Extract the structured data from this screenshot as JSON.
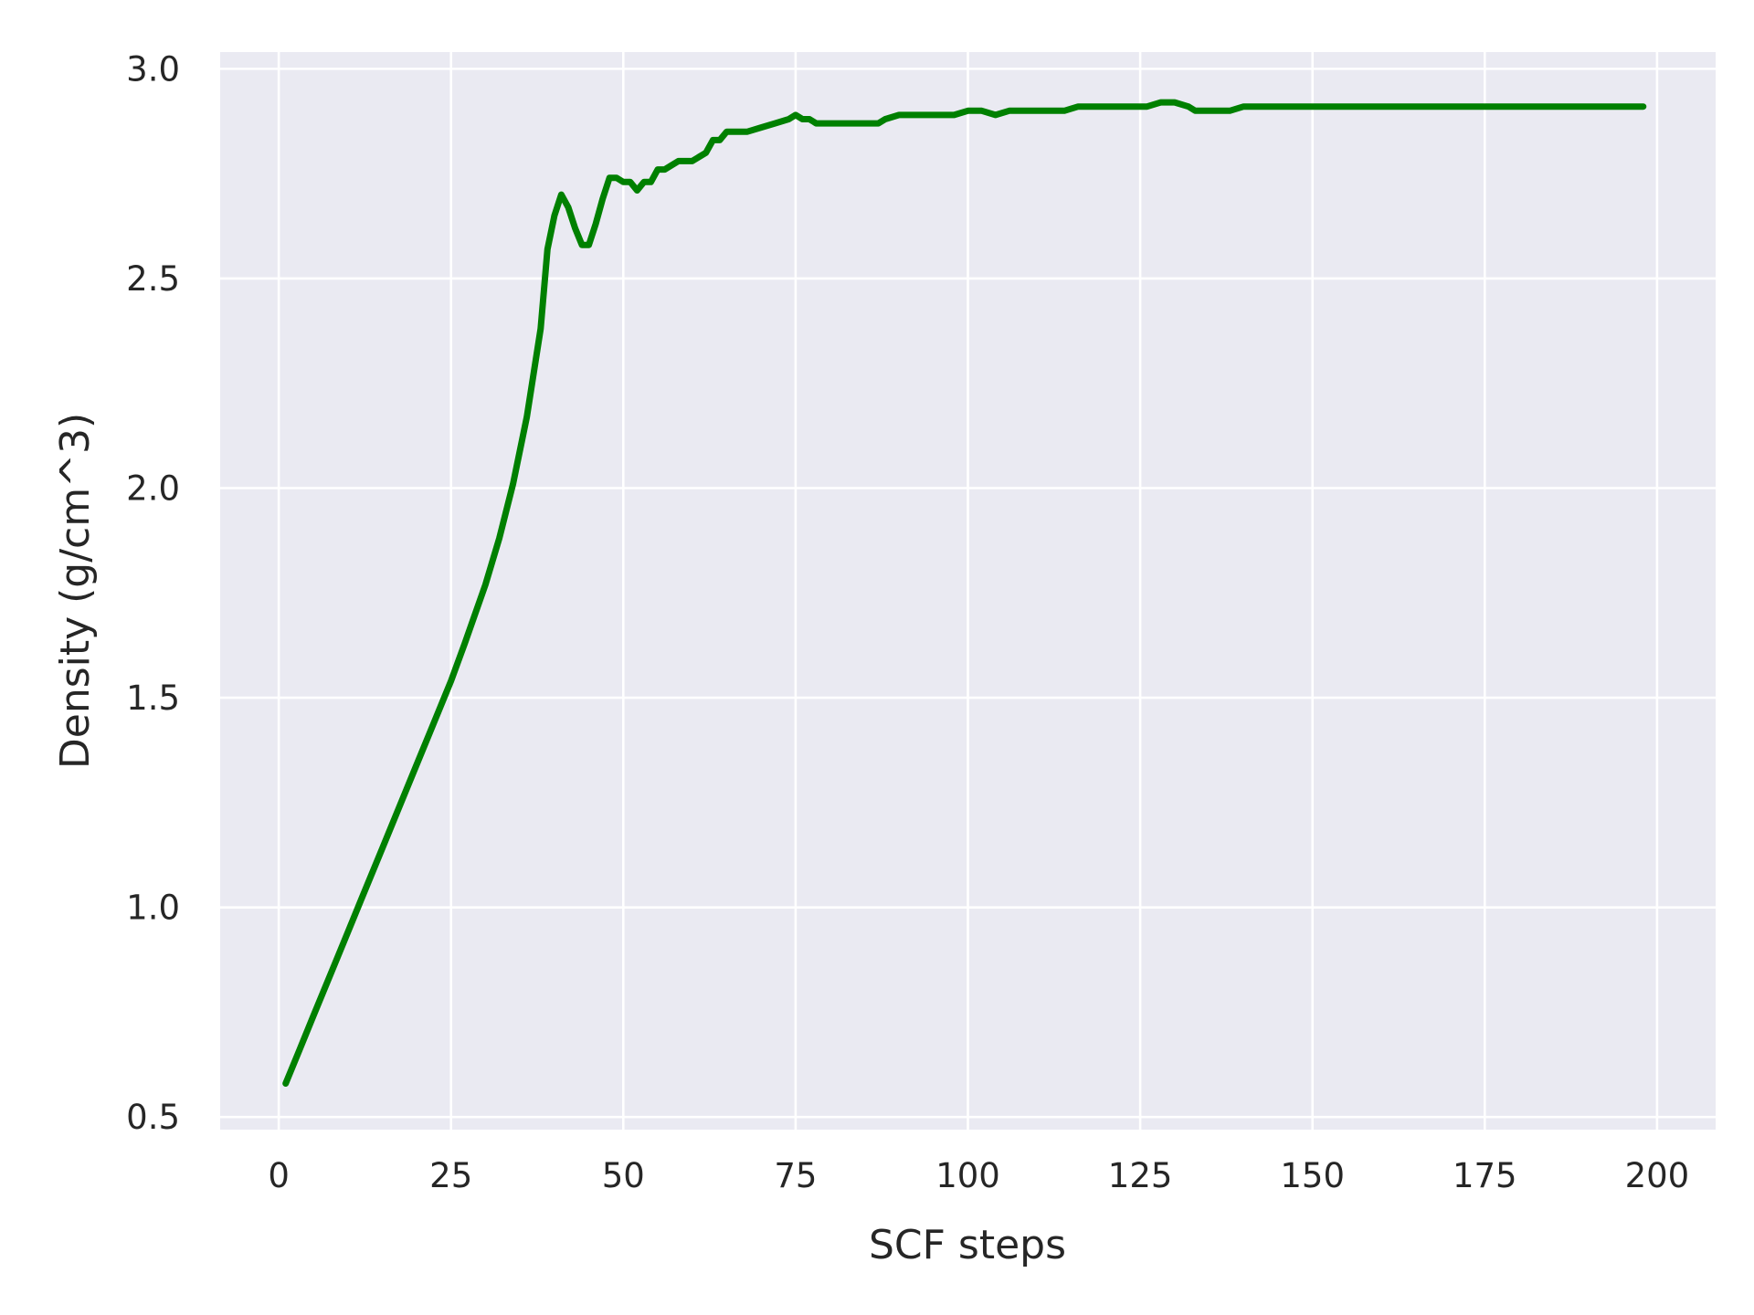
{
  "chart_data": {
    "type": "line",
    "title": "",
    "xlabel": "SCF steps",
    "ylabel": "Density (g/cm^3)",
    "xlim": [
      -8.5,
      208.5
    ],
    "ylim": [
      0.47,
      3.04
    ],
    "xticks": [
      0,
      25,
      50,
      75,
      100,
      125,
      150,
      175,
      200
    ],
    "yticks": [
      0.5,
      1.0,
      1.5,
      2.0,
      2.5,
      3.0
    ],
    "xtick_labels": [
      "0",
      "25",
      "50",
      "75",
      "100",
      "125",
      "150",
      "175",
      "200"
    ],
    "ytick_labels": [
      "0.5",
      "1.0",
      "1.5",
      "2.0",
      "2.5",
      "3.0"
    ],
    "grid": true,
    "background_color": "#eaeaf2",
    "grid_color": "#ffffff",
    "series": [
      {
        "color": "#008000",
        "x": [
          1,
          3,
          5,
          8,
          10,
          12,
          15,
          18,
          20,
          22,
          25,
          27,
          30,
          32,
          34,
          36,
          38,
          39,
          40,
          41,
          42,
          43,
          44,
          45,
          46,
          47,
          48,
          49,
          50,
          51,
          52,
          53,
          54,
          55,
          56,
          57,
          58,
          60,
          62,
          63,
          64,
          65,
          66,
          68,
          70,
          72,
          74,
          75,
          76,
          77,
          78,
          79,
          80,
          81,
          82,
          83,
          84,
          85,
          86,
          87,
          88,
          90,
          92,
          94,
          96,
          98,
          100,
          102,
          104,
          106,
          108,
          110,
          112,
          114,
          116,
          118,
          120,
          122,
          124,
          126,
          128,
          130,
          132,
          133,
          135,
          138,
          140,
          142,
          144,
          146,
          148,
          150,
          155,
          160,
          165,
          170,
          175,
          180,
          185,
          190,
          195,
          198
        ],
        "y": [
          0.58,
          0.66,
          0.74,
          0.86,
          0.94,
          1.02,
          1.14,
          1.26,
          1.34,
          1.42,
          1.54,
          1.63,
          1.77,
          1.88,
          2.01,
          2.17,
          2.38,
          2.57,
          2.65,
          2.7,
          2.67,
          2.62,
          2.58,
          2.58,
          2.63,
          2.69,
          2.74,
          2.74,
          2.73,
          2.73,
          2.71,
          2.73,
          2.73,
          2.76,
          2.76,
          2.77,
          2.78,
          2.78,
          2.8,
          2.83,
          2.83,
          2.85,
          2.85,
          2.85,
          2.86,
          2.87,
          2.88,
          2.89,
          2.88,
          2.88,
          2.87,
          2.87,
          2.87,
          2.87,
          2.87,
          2.87,
          2.87,
          2.87,
          2.87,
          2.87,
          2.88,
          2.89,
          2.89,
          2.89,
          2.89,
          2.89,
          2.9,
          2.9,
          2.89,
          2.9,
          2.9,
          2.9,
          2.9,
          2.9,
          2.91,
          2.91,
          2.91,
          2.91,
          2.91,
          2.91,
          2.92,
          2.92,
          2.91,
          2.9,
          2.9,
          2.9,
          2.91,
          2.91,
          2.91,
          2.91,
          2.91,
          2.91,
          2.91,
          2.91,
          2.91,
          2.91,
          2.91,
          2.91,
          2.91,
          2.91,
          2.91,
          2.91
        ]
      }
    ]
  }
}
